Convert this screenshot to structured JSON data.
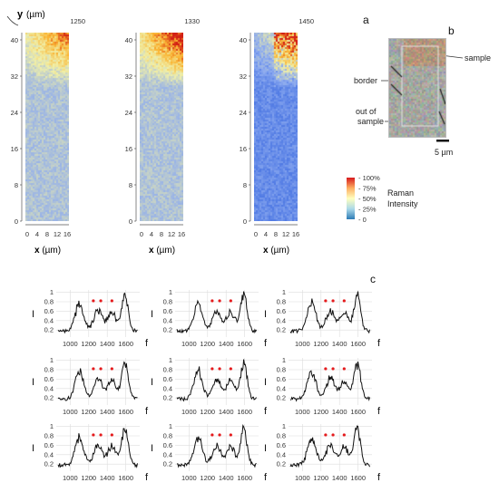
{
  "panel_labels": {
    "a": "a",
    "b": "b",
    "c": "c"
  },
  "heatmaps": {
    "y_axis_label": "y",
    "y_unit": "(µm)",
    "x_axis_label": "x",
    "x_unit": "(µm)",
    "y_ticks": [
      "40",
      "32",
      "24",
      "16",
      "8",
      "0"
    ],
    "x_ticks": [
      "0",
      "4",
      "8",
      "12",
      "16"
    ],
    "panels": [
      {
        "title": "1250",
        "hotspot": 0.55
      },
      {
        "title": "1330",
        "hotspot": 0.75
      },
      {
        "title": "1450",
        "hotspot": 0.45
      }
    ]
  },
  "colorbar": {
    "ticks": [
      "100%",
      "75%",
      "50%",
      "25%",
      "0"
    ],
    "label_line1": "Raman",
    "label_line2": "Intensity",
    "colors": [
      "#d7191c",
      "#fdae61",
      "#ffffbf",
      "#abd9e9",
      "#2c7bb6"
    ]
  },
  "photo": {
    "labels": {
      "sample": "sample",
      "border": "border",
      "out1": "out of",
      "out2": "sample"
    },
    "scale": "5 µm"
  },
  "chart_data": {
    "type": "line",
    "x_ticks": [
      "1000",
      "1200",
      "1400",
      "1600"
    ],
    "y_ticks": [
      "1",
      "0.8",
      "0.6",
      "0.4",
      "0.2"
    ],
    "ylabel": "I",
    "xlabel": "f",
    "markers_x": [
      1250,
      1330,
      1450
    ],
    "grid": [
      3,
      3
    ],
    "xlim": [
      850,
      1750
    ],
    "ylim": [
      0.05,
      1.05
    ]
  }
}
